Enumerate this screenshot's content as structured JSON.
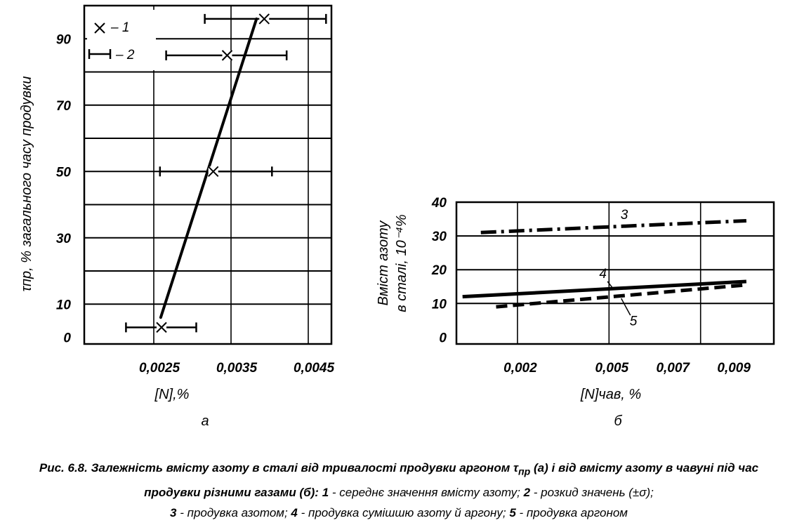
{
  "chart_data": [
    {
      "type": "line",
      "panel_label": "а",
      "xlabel": "[N],%",
      "ylabel": "τпр, % загального часу продувки",
      "xlim": [
        0.0016,
        0.0048
      ],
      "ylim": [
        -2,
        100
      ],
      "x_ticks": [
        {
          "value": 0.0025,
          "label": "0,0025"
        },
        {
          "value": 0.0035,
          "label": "0,0035"
        },
        {
          "value": 0.0045,
          "label": "0,0045"
        }
      ],
      "y_ticks": [
        {
          "value": 0,
          "label": "0"
        },
        {
          "value": 10,
          "label": "10"
        },
        {
          "value": 30,
          "label": "30"
        },
        {
          "value": 50,
          "label": "50"
        },
        {
          "value": 70,
          "label": "70"
        },
        {
          "value": 90,
          "label": "90"
        }
      ],
      "x_grid": [
        0.0025,
        0.0035,
        0.0045
      ],
      "y_grid": [
        10,
        20,
        30,
        40,
        50,
        60,
        70,
        80,
        90
      ],
      "legend": [
        {
          "marker": "×",
          "label": "– 1"
        },
        {
          "marker": "|—|",
          "label": "– 2"
        }
      ],
      "series": [
        {
          "name": "1",
          "x": [
            0.0026,
            0.00327,
            0.00345,
            0.00393
          ],
          "y": [
            3,
            50,
            85,
            96
          ]
        }
      ],
      "trend_line": {
        "x": [
          0.00259,
          0.00383
        ],
        "y": [
          6,
          96
        ]
      },
      "error_bars": [
        {
          "y": 3,
          "xmin": 0.00214,
          "xmax": 0.00305
        },
        {
          "y": 50,
          "xmin": 0.00258,
          "xmax": 0.00403
        },
        {
          "y": 85,
          "xmin": 0.00266,
          "xmax": 0.00422
        },
        {
          "y": 96,
          "xmin": 0.00316,
          "xmax": 0.00473
        }
      ]
    },
    {
      "type": "line",
      "panel_label": "б",
      "xlabel": "[N]чав, %",
      "ylabel_line1": "Вміст азоту",
      "ylabel_line2": "в сталі, 10⁻⁴%",
      "xlim": [
        0.0,
        0.0104
      ],
      "ylim": [
        -2,
        40
      ],
      "x_ticks": [
        {
          "value": 0.002,
          "label": "0,002"
        },
        {
          "value": 0.005,
          "label": "0,005"
        },
        {
          "value": 0.007,
          "label": "0,007"
        },
        {
          "value": 0.009,
          "label": "0,009"
        }
      ],
      "y_ticks": [
        {
          "value": 0,
          "label": "0"
        },
        {
          "value": 10,
          "label": "10"
        },
        {
          "value": 20,
          "label": "20"
        },
        {
          "value": 30,
          "label": "30"
        },
        {
          "value": 40,
          "label": "40"
        }
      ],
      "x_grid": [
        0.002,
        0.005,
        0.008
      ],
      "y_grid": [
        10,
        20,
        30
      ],
      "series": [
        {
          "name": "3",
          "x": [
            0.0008,
            0.0095
          ],
          "y": [
            31,
            34.5
          ],
          "style": "dashdot"
        },
        {
          "name": "4",
          "x": [
            0.0002,
            0.0095
          ],
          "y": [
            12,
            16.5
          ],
          "style": "solid"
        },
        {
          "name": "5",
          "x": [
            0.0013,
            0.0095
          ],
          "y": [
            9,
            15.5
          ],
          "style": "dashed"
        }
      ],
      "curve_labels": [
        {
          "text": "3",
          "x": 0.0055,
          "y": 35
        },
        {
          "text": "4",
          "x": 0.0048,
          "y": 17.5
        },
        {
          "text": "5",
          "x": 0.0058,
          "y": 3.5
        }
      ]
    }
  ],
  "caption": {
    "fig_label": "Рис. 6.8.",
    "title_part1": "Залежність вмісту азоту в сталі від тривалості продувки аргоном",
    "tau_symbol": "τ",
    "tau_sub": "пр",
    "title_part2": "(а) і від вмісту азоту в чавуні під час продувки різними газами (б):",
    "items": [
      {
        "num": "1",
        "text": " - середнє значення вмісту азоту; "
      },
      {
        "num": "2",
        "text": " - розкид значень (±σ);"
      },
      {
        "num": "3",
        "text": " - продувка азотом; "
      },
      {
        "num": "4",
        "text": " - продувка сумішшю азоту й аргону; "
      },
      {
        "num": "5",
        "text": " - продувка аргоном"
      }
    ]
  }
}
